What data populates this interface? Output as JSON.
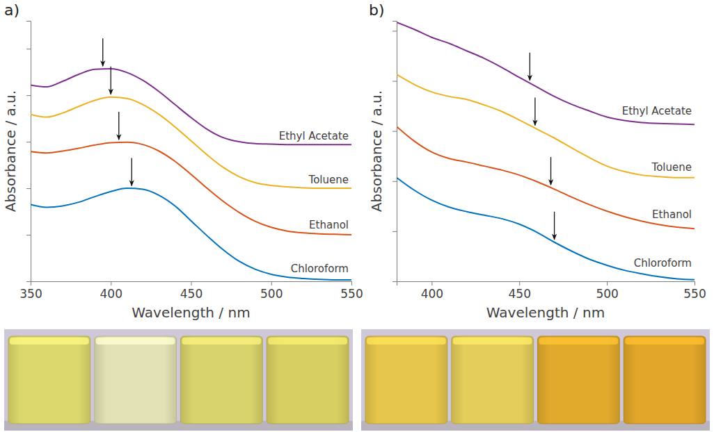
{
  "chart_data": [
    {
      "type": "line",
      "title": "a)",
      "x_label": "Wavelength / nm",
      "y_label": "Absorbance / a.u.",
      "x": [
        350,
        360,
        370,
        380,
        390,
        400,
        410,
        420,
        430,
        440,
        450,
        460,
        470,
        480,
        490,
        500,
        510,
        520,
        530,
        540,
        550
      ],
      "xlim": [
        350,
        550
      ],
      "xticks": [
        350,
        400,
        450,
        500,
        550
      ],
      "ylim": [
        0,
        5.6
      ],
      "yticks": [
        0,
        1,
        2,
        3,
        4,
        5
      ],
      "grid": false,
      "tick_labels": "x",
      "series": [
        {
          "name": "Ethyl Acetate",
          "color": "#7e2f8e",
          "peak": 395,
          "values": [
            4.22,
            4.18,
            4.3,
            4.45,
            4.56,
            4.57,
            4.49,
            4.32,
            4.08,
            3.8,
            3.52,
            3.27,
            3.09,
            3.0,
            2.96,
            2.95,
            2.94,
            2.94,
            2.94,
            2.94,
            2.94
          ]
        },
        {
          "name": "Toluene",
          "color": "#edb120",
          "peak": 400,
          "values": [
            3.59,
            3.53,
            3.62,
            3.76,
            3.89,
            3.96,
            3.93,
            3.8,
            3.59,
            3.32,
            3.02,
            2.72,
            2.45,
            2.25,
            2.12,
            2.06,
            2.03,
            2.01,
            2.0,
            2.0,
            2.0
          ]
        },
        {
          "name": "Ethanol",
          "color": "#d95319",
          "peak": 405,
          "values": [
            2.79,
            2.76,
            2.8,
            2.86,
            2.93,
            2.98,
            2.99,
            2.94,
            2.8,
            2.58,
            2.3,
            2.0,
            1.72,
            1.48,
            1.29,
            1.16,
            1.08,
            1.04,
            1.02,
            1.01,
            1.0
          ]
        },
        {
          "name": "Chloroform",
          "color": "#0072bd",
          "peak": 413,
          "values": [
            1.65,
            1.59,
            1.62,
            1.7,
            1.82,
            1.93,
            2.0,
            1.98,
            1.85,
            1.62,
            1.3,
            0.98,
            0.68,
            0.43,
            0.26,
            0.15,
            0.09,
            0.06,
            0.04,
            0.03,
            0.03
          ]
        }
      ]
    },
    {
      "type": "line",
      "title": "b)",
      "x_label": "Wavelength / nm",
      "y_label": "Absorbance / a.u.",
      "x": [
        380,
        390,
        400,
        410,
        420,
        430,
        440,
        450,
        460,
        470,
        480,
        490,
        500,
        510,
        520,
        530,
        540,
        550
      ],
      "xlim": [
        380,
        550
      ],
      "xticks": [
        400,
        450,
        500,
        550
      ],
      "ylim": [
        0,
        5.2
      ],
      "yticks": [
        0,
        1,
        2,
        3,
        4,
        5
      ],
      "grid": false,
      "tick_labels": "x",
      "series": [
        {
          "name": "Ethyl Acetate",
          "color": "#7e2f8e",
          "peak": 456,
          "values": [
            5.17,
            5.03,
            4.87,
            4.75,
            4.6,
            4.45,
            4.27,
            4.07,
            3.88,
            3.69,
            3.53,
            3.4,
            3.28,
            3.21,
            3.17,
            3.15,
            3.14,
            3.13
          ]
        },
        {
          "name": "Toluene",
          "color": "#edb120",
          "peak": 459,
          "values": [
            4.13,
            3.93,
            3.78,
            3.69,
            3.63,
            3.52,
            3.39,
            3.22,
            3.04,
            2.86,
            2.66,
            2.47,
            2.3,
            2.19,
            2.12,
            2.09,
            2.07,
            2.07
          ]
        },
        {
          "name": "Ethanol",
          "color": "#d95319",
          "peak": 468,
          "values": [
            3.09,
            2.8,
            2.58,
            2.45,
            2.38,
            2.3,
            2.22,
            2.12,
            1.99,
            1.84,
            1.68,
            1.53,
            1.4,
            1.29,
            1.2,
            1.13,
            1.08,
            1.05
          ]
        },
        {
          "name": "Chloroform",
          "color": "#0072bd",
          "peak": 470,
          "values": [
            2.07,
            1.82,
            1.62,
            1.48,
            1.39,
            1.32,
            1.25,
            1.14,
            0.98,
            0.78,
            0.6,
            0.44,
            0.32,
            0.22,
            0.15,
            0.09,
            0.05,
            0.03
          ]
        }
      ]
    }
  ]
}
